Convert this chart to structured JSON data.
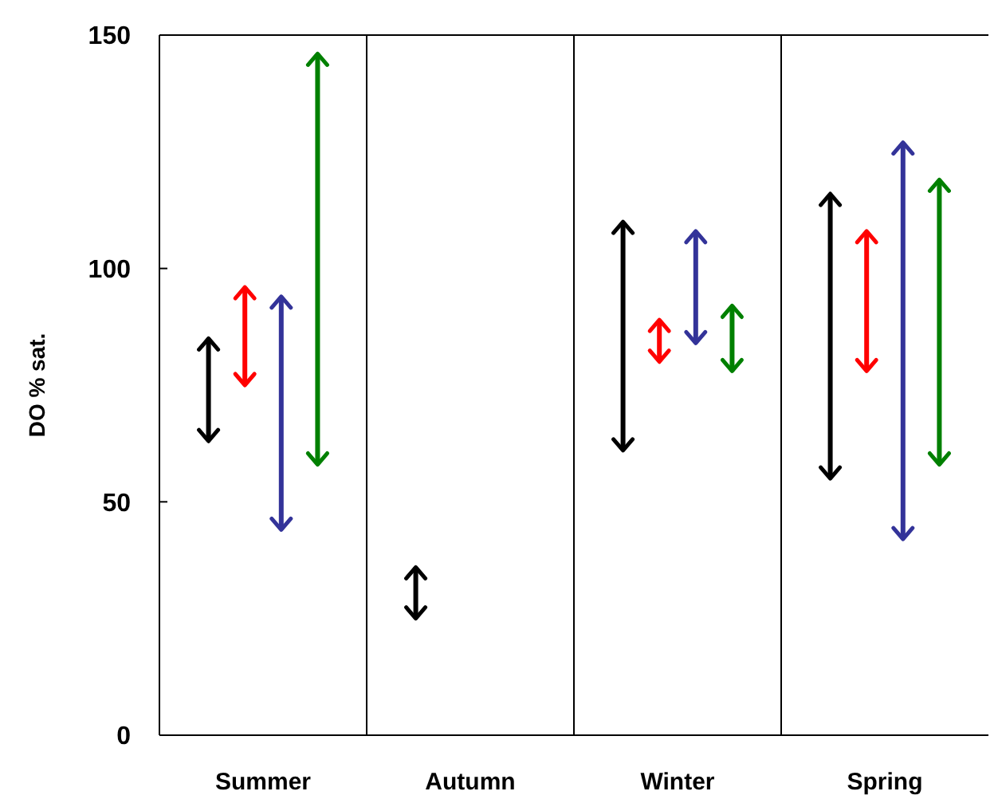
{
  "chart_data": {
    "type": "bar",
    "ylabel": "DO % sat.",
    "categories": [
      "Summer",
      "Autumn",
      "Winter",
      "Spring"
    ],
    "ylim": [
      0,
      150
    ],
    "yticks": [
      0,
      50,
      100,
      150
    ],
    "grid": false,
    "series": [
      {
        "color": "#000000",
        "base": [
          63,
          25,
          61,
          55
        ],
        "values": [
          22,
          11,
          49,
          61
        ]
      },
      {
        "color": "#ff0000",
        "base": [
          75,
          null,
          80,
          78
        ],
        "values": [
          21,
          null,
          9,
          30
        ]
      },
      {
        "color": "#333399",
        "base": [
          44,
          null,
          84,
          42
        ],
        "values": [
          50,
          null,
          24,
          85
        ]
      },
      {
        "color": "#008000",
        "base": [
          58,
          null,
          78,
          58
        ],
        "values": [
          88,
          null,
          14,
          61
        ]
      }
    ]
  }
}
